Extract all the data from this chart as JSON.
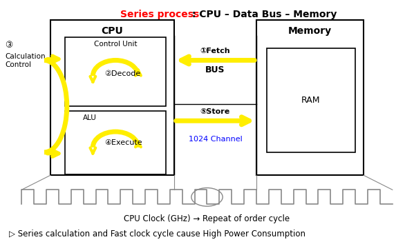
{
  "title_red": "Series process",
  "title_black": " : CPU – Data Bus – Memory",
  "background_color": "#ffffff",
  "text_color": "#000000",
  "blue_color": "#0000ff",
  "red_color": "#ff0000",
  "yellow_color": "#ffee00",
  "gray_color": "#888888",
  "clock_label": "CPU Clock (GHz) → Repeat of order cycle",
  "bottom_text": "▷ Series calculation and Fast clock cycle cause High Power Consumption",
  "fetch_label": "①Fetch",
  "store_label": "⑤Store",
  "decode_label": "②Decode",
  "execute_label": "④Execute",
  "bus_label": "BUS",
  "channel_label": "1024 Channel",
  "cpu_label": "CPU",
  "memory_label": "Memory",
  "control_unit_label": "Control Unit",
  "alu_label": "ALU",
  "ram_label": "RAM",
  "circled3": "③",
  "calc_control": "Calculation\nControl"
}
